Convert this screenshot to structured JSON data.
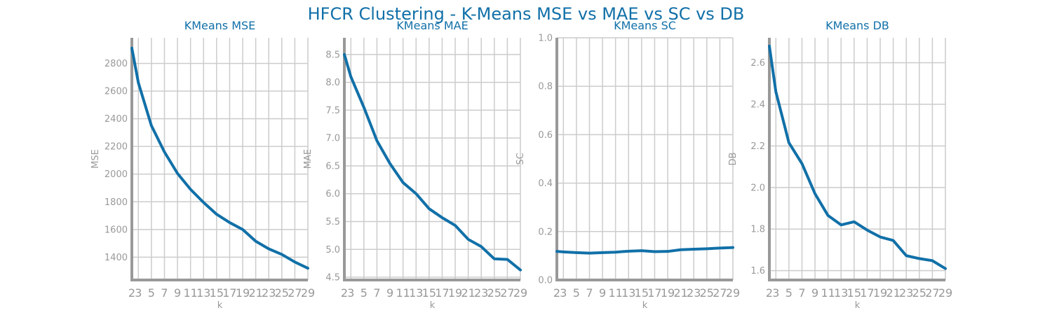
{
  "title": "HFCR Clustering - K-Means MSE vs MAE vs SC vs DB",
  "colors": {
    "line": "#1170a8",
    "title": "#1170a8",
    "axis": "#999999",
    "grid": "#cccccc",
    "text": "#999999"
  },
  "chart_data": [
    {
      "type": "line",
      "title": "KMeans MSE",
      "xlabel": "k",
      "ylabel": "MSE",
      "x": [
        2,
        3,
        5,
        7,
        9,
        11,
        13,
        15,
        17,
        19,
        21,
        23,
        25,
        27,
        29
      ],
      "xticks": [
        "2",
        "3",
        "5",
        "7",
        "9",
        "11",
        "13",
        "15",
        "17",
        "19",
        "21",
        "23",
        "25",
        "27",
        "29"
      ],
      "values": [
        2910,
        2660,
        2350,
        2160,
        2005,
        1890,
        1795,
        1710,
        1650,
        1600,
        1515,
        1460,
        1420,
        1365,
        1320
      ],
      "ylim": [
        1235,
        2985
      ],
      "yticks": [
        1400,
        1600,
        1800,
        2000,
        2200,
        2400,
        2600,
        2800
      ],
      "ytick_labels": [
        "1400",
        "1600",
        "1800",
        "2000",
        "2200",
        "2400",
        "2600",
        "2800"
      ],
      "grid": true
    },
    {
      "type": "line",
      "title": "KMeans MAE",
      "xlabel": "k",
      "ylabel": "MAE",
      "x": [
        2,
        3,
        5,
        7,
        9,
        11,
        13,
        15,
        17,
        19,
        21,
        23,
        25,
        27,
        29
      ],
      "xticks": [
        "2",
        "3",
        "5",
        "7",
        "9",
        "11",
        "13",
        "15",
        "17",
        "19",
        "21",
        "23",
        "25",
        "27",
        "29"
      ],
      "values": [
        8.5,
        8.1,
        7.55,
        6.95,
        6.54,
        6.2,
        6.0,
        5.73,
        5.57,
        5.43,
        5.18,
        5.05,
        4.83,
        4.82,
        4.63
      ],
      "ylim": [
        4.45,
        8.8
      ],
      "yticks": [
        4.5,
        5.0,
        5.5,
        6.0,
        6.5,
        7.0,
        7.5,
        8.0,
        8.5
      ],
      "ytick_labels": [
        "4.5",
        "5.0",
        "5.5",
        "6.0",
        "6.5",
        "7.0",
        "7.5",
        "8.0",
        "8.5"
      ],
      "grid": true
    },
    {
      "type": "line",
      "title": "KMeans SC",
      "xlabel": "k",
      "ylabel": "SC",
      "x": [
        2,
        3,
        5,
        7,
        9,
        11,
        13,
        15,
        17,
        19,
        21,
        23,
        25,
        27,
        29
      ],
      "xticks": [
        "2",
        "3",
        "5",
        "7",
        "9",
        "11",
        "13",
        "15",
        "17",
        "19",
        "21",
        "23",
        "25",
        "27",
        "29"
      ],
      "values": [
        0.118,
        0.116,
        0.113,
        0.111,
        0.113,
        0.115,
        0.119,
        0.121,
        0.117,
        0.118,
        0.125,
        0.127,
        0.129,
        0.132,
        0.134
      ],
      "ylim": [
        0.0,
        1.0
      ],
      "yticks": [
        0.0,
        0.2,
        0.4,
        0.6,
        0.8,
        1.0
      ],
      "ytick_labels": [
        "0.0",
        "0.2",
        "0.4",
        "0.6",
        "0.8",
        "1.0"
      ],
      "grid": true
    },
    {
      "type": "line",
      "title": "KMeans DB",
      "xlabel": "k",
      "ylabel": "DB",
      "x": [
        2,
        3,
        5,
        7,
        9,
        11,
        13,
        15,
        17,
        19,
        21,
        23,
        25,
        27,
        29
      ],
      "xticks": [
        "2",
        "3",
        "5",
        "7",
        "9",
        "11",
        "13",
        "15",
        "17",
        "19",
        "21",
        "23",
        "25",
        "27",
        "29"
      ],
      "values": [
        2.68,
        2.46,
        2.215,
        2.115,
        1.97,
        1.865,
        1.82,
        1.835,
        1.795,
        1.762,
        1.745,
        1.672,
        1.658,
        1.648,
        1.61
      ],
      "ylim": [
        1.555,
        2.72
      ],
      "yticks": [
        1.6,
        1.8,
        2.0,
        2.2,
        2.4,
        2.6
      ],
      "ytick_labels": [
        "1.6",
        "1.8",
        "2.0",
        "2.2",
        "2.4",
        "2.6"
      ],
      "grid": true
    }
  ]
}
